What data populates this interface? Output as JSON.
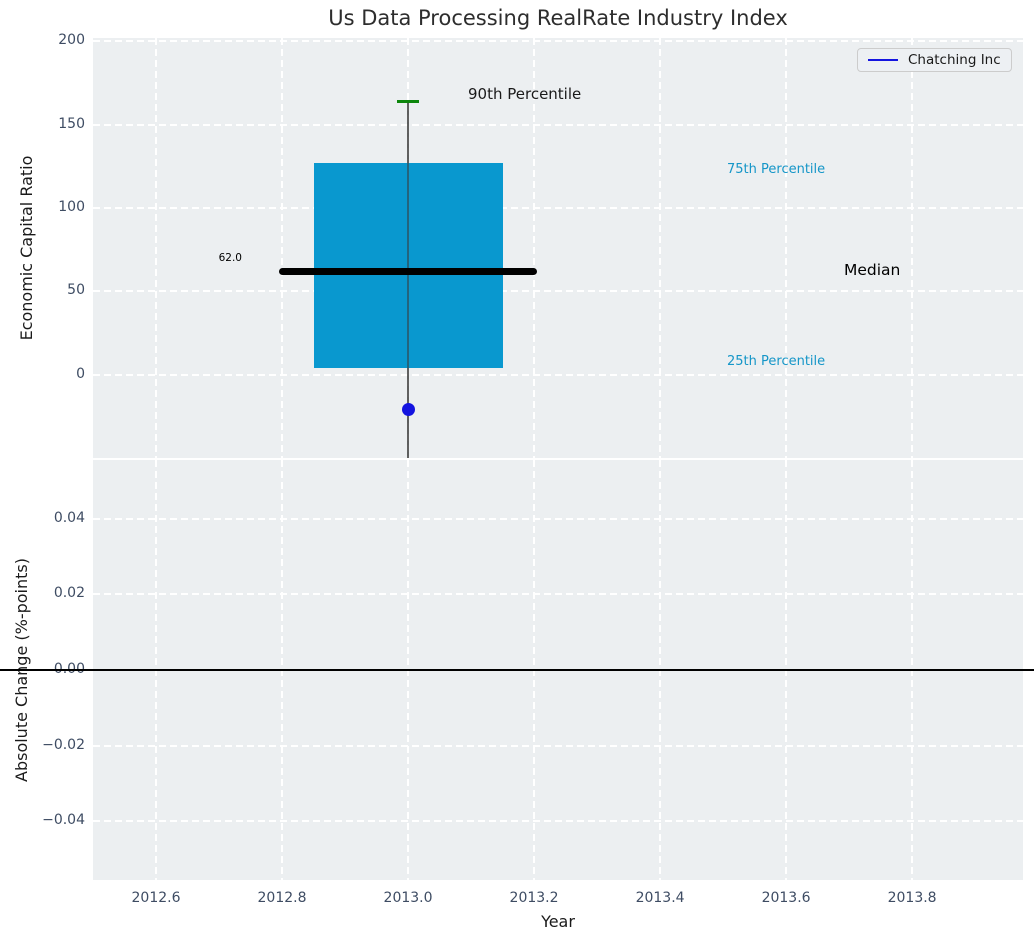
{
  "title": "Us Data Processing RealRate Industry Index",
  "legend": {
    "items": [
      {
        "label": "Chatching Inc",
        "color": "#1414e0"
      }
    ]
  },
  "annotations": {
    "p90_label": "90th Percentile",
    "p75_label": "75th Percentile",
    "median_label": "Median",
    "p25_label": "25th Percentile",
    "median_value_label": "62.0"
  },
  "colors": {
    "plot_background": "#eceff1",
    "gridline": "#ffffff",
    "box_fill": "#0998cf",
    "company_blue": "#1414e0",
    "whisker_cap_green": "#0c860c",
    "median_line": "#000000",
    "tick_text": "#3e4c63",
    "percentile_text_blue": "#1596c8"
  },
  "chart_data": {
    "type": "box",
    "title": "Us Data Processing RealRate Industry Index",
    "xlabel": "Year",
    "xlim": [
      2012.5,
      2013.976
    ],
    "xticks": [
      {
        "v": 2012.6,
        "label": "2012.6"
      },
      {
        "v": 2012.8,
        "label": "2012.8"
      },
      {
        "v": 2013.0,
        "label": "2013.0"
      },
      {
        "v": 2013.2,
        "label": "2013.2"
      },
      {
        "v": 2013.4,
        "label": "2013.4"
      },
      {
        "v": 2013.6,
        "label": "2013.6"
      },
      {
        "v": 2013.8,
        "label": "2013.8"
      }
    ],
    "panels": [
      {
        "name": "economic-capital-ratio",
        "ylabel": "Economic Capital Ratio",
        "ylim": [
          -50,
          202
        ],
        "grid": true,
        "legend_position": "upper right",
        "yticks": [
          {
            "v": 200,
            "label": "200"
          },
          {
            "v": 150,
            "label": "150"
          },
          {
            "v": 100,
            "label": "100"
          },
          {
            "v": 50,
            "label": "50"
          },
          {
            "v": 0,
            "label": "0"
          }
        ],
        "industry_box": {
          "x": 2013.0,
          "p25": 4,
          "median": 62.0,
          "p75": 127,
          "p90": 164,
          "whisker_low_clipped_at_axis_bottom": true,
          "box_halfwidth_years": 0.15,
          "median_halfwidth_years": 0.205,
          "cap_halfwidth_years": 0.017
        },
        "company_series": {
          "name": "Chatching Inc",
          "points": [
            {
              "x": 2013.0,
              "y": -21
            }
          ]
        }
      },
      {
        "name": "absolute-change",
        "ylabel": "Absolute Change (%-points)",
        "ylim": [
          -0.0555,
          0.0555
        ],
        "grid": true,
        "zero_line": 0.0,
        "yticks": [
          {
            "v": 0.04,
            "label": "0.04"
          },
          {
            "v": 0.02,
            "label": "0.02"
          },
          {
            "v": 0.0,
            "label": "0.00"
          },
          {
            "v": -0.02,
            "label": "−0.02"
          },
          {
            "v": -0.04,
            "label": "−0.04"
          }
        ],
        "series": []
      }
    ]
  }
}
